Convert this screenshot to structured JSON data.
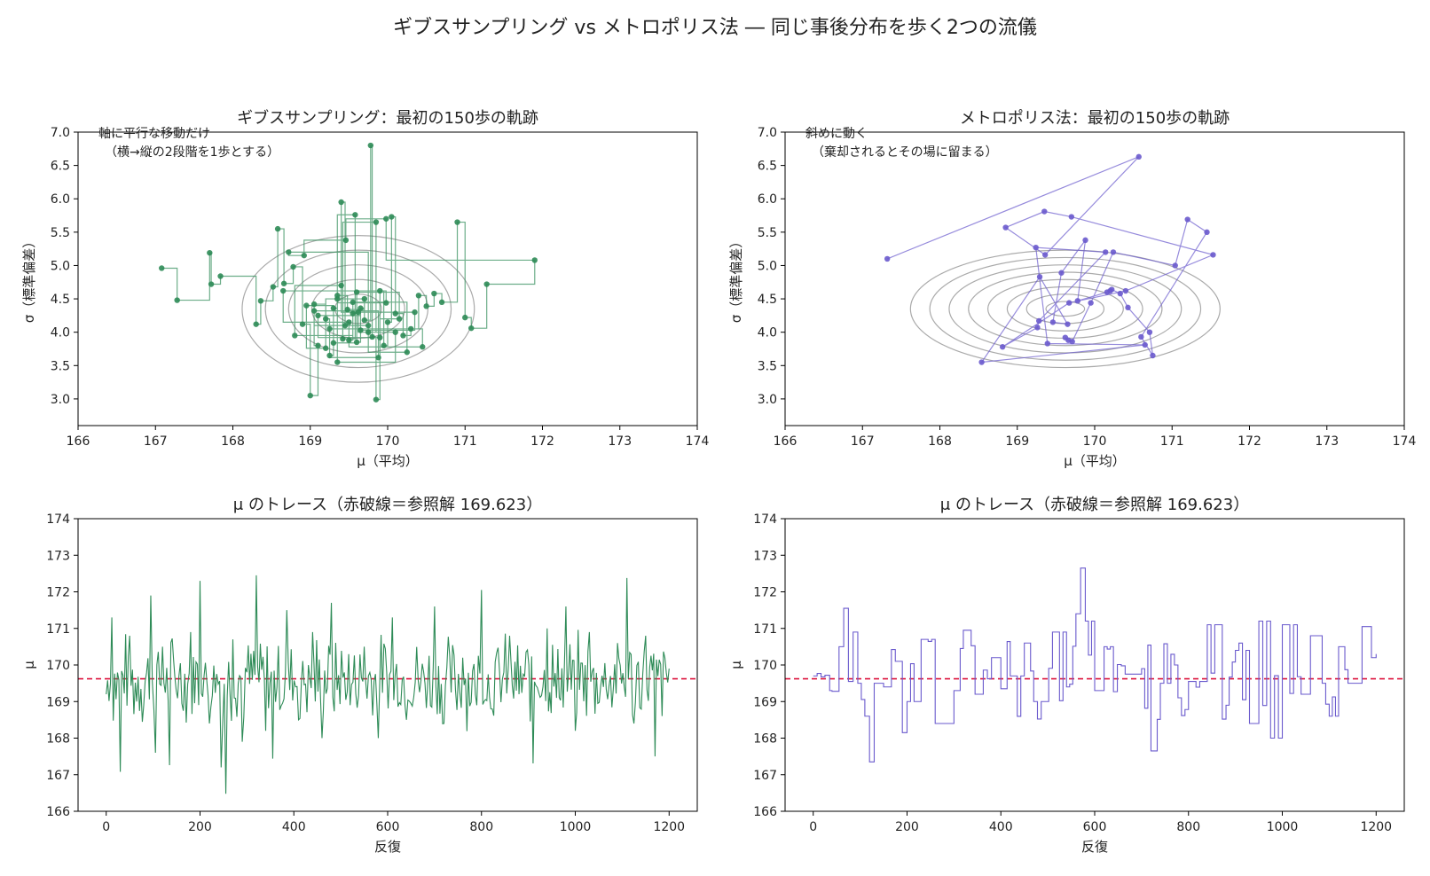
{
  "figure": {
    "suptitle": "ギブスサンプリング vs メトロポリス法 ― 同じ事後分布を歩く2つの流儀"
  },
  "colors": {
    "gibbs": "#2e8b57",
    "metropolis": "#6a5acd",
    "reference": "#dc143c",
    "contour": "#aaaaaa",
    "axis": "#000000"
  },
  "panels": {
    "gibbs_path": {
      "title": "ギブスサンプリング：最初の150歩の軌跡",
      "xlabel": "μ（平均）",
      "ylabel": "σ（標準偏差）",
      "annotation": [
        "軸に平行な移動だけ",
        "（横→縦の2段階を1歩とする）"
      ]
    },
    "mh_path": {
      "title": "メトロポリス法：最初の150歩の軌跡",
      "xlabel": "μ（平均）",
      "ylabel": "σ（標準偏差）",
      "annotation": [
        "斜めに動く",
        "（棄却されるとその場に留まる）"
      ]
    },
    "gibbs_trace": {
      "title": "μ のトレース（赤破線＝参照解 169.623）",
      "xlabel": "反復",
      "ylabel": "μ"
    },
    "mh_trace": {
      "title": "μ のトレース（赤破線＝参照解 169.623）",
      "xlabel": "反復",
      "ylabel": "μ"
    }
  },
  "chart_data": [
    {
      "id": "gibbs_path",
      "type": "line",
      "xlim": [
        166,
        174
      ],
      "ylim": [
        2.6,
        7.0
      ],
      "xticks": [
        166,
        167,
        168,
        169,
        170,
        171,
        172,
        173,
        174
      ],
      "yticks": [
        3.0,
        3.5,
        4.0,
        4.5,
        5.0,
        5.5,
        6.0,
        6.5,
        7.0
      ],
      "ytick_labels": [
        "3.0",
        "3.5",
        "4.0",
        "4.5",
        "5.0",
        "5.5",
        "6.0",
        "6.5",
        "7.0"
      ],
      "contours": {
        "center": [
          169.62,
          4.35
        ],
        "semi_axes_mu": [
          0.3,
          0.6,
          0.9,
          1.2,
          1.5
        ],
        "semi_axes_sigma": [
          0.22,
          0.44,
          0.66,
          0.88,
          1.1
        ]
      },
      "path_style": "step",
      "series": [
        {
          "x": [
            167.08,
            167.28,
            167.7,
            167.72,
            167.84,
            168.3,
            168.36,
            168.52,
            168.58,
            168.66,
            168.78,
            168.9,
            169.0,
            169.1,
            169.05,
            169.2,
            169.25,
            169.3,
            169.35,
            169.4,
            169.45,
            169.5,
            169.55,
            169.6,
            169.65,
            169.7,
            169.78,
            169.8,
            169.85,
            169.9,
            169.95,
            170.0,
            170.05,
            170.1,
            170.2,
            170.3,
            170.4,
            170.5,
            170.6,
            170.7,
            170.9,
            171.0,
            171.08,
            171.28,
            171.9,
            169.98,
            169.46,
            168.92,
            168.72,
            169.75,
            169.85,
            169.42,
            169.58,
            169.35,
            169.48,
            169.7,
            169.2,
            168.95,
            169.3,
            169.6,
            170.15,
            169.9,
            169.1,
            169.65,
            170.35,
            169.4,
            168.8,
            169.55,
            170.25,
            169.75,
            169.05,
            169.88,
            169.25,
            170.45,
            169.5,
            168.65,
            169.98,
            169.35,
            170.1,
            169.62
          ],
          "y": [
            4.96,
            4.48,
            5.19,
            4.72,
            4.84,
            4.12,
            4.47,
            4.68,
            5.55,
            4.73,
            4.98,
            4.12,
            3.05,
            3.8,
            4.42,
            4.2,
            3.65,
            4.36,
            4.5,
            5.95,
            4.1,
            3.88,
            4.28,
            3.85,
            4.36,
            4.18,
            6.8,
            3.93,
            2.99,
            4.62,
            3.8,
            4.15,
            5.73,
            4.28,
            3.95,
            4.05,
            4.55,
            4.39,
            4.58,
            4.45,
            5.65,
            4.22,
            4.06,
            4.72,
            5.08,
            5.7,
            5.38,
            5.15,
            5.2,
            4.0,
            5.65,
            3.9,
            5.76,
            4.55,
            4.34,
            4.5,
            3.76,
            4.4,
            3.84,
            4.6,
            4.2,
            3.92,
            4.25,
            4.03,
            4.3,
            4.7,
            3.95,
            4.45,
            3.7,
            4.1,
            4.32,
            3.62,
            4.05,
            3.78,
            4.15,
            4.62,
            4.44,
            3.55,
            4.0,
            4.3
          ]
        }
      ]
    },
    {
      "id": "mh_path",
      "type": "line",
      "xlim": [
        166,
        174
      ],
      "ylim": [
        2.6,
        7.0
      ],
      "xticks": [
        166,
        167,
        168,
        169,
        170,
        171,
        172,
        173,
        174
      ],
      "yticks": [
        3.0,
        3.5,
        4.0,
        4.5,
        5.0,
        5.5,
        6.0,
        6.5,
        7.0
      ],
      "ytick_labels": [
        "3.0",
        "3.5",
        "4.0",
        "4.5",
        "5.0",
        "5.5",
        "6.0",
        "6.5",
        "7.0"
      ],
      "contours": {
        "center": [
          169.62,
          4.35
        ],
        "semi_axes_mu": [
          0.25,
          0.5,
          0.75,
          1.0,
          1.25,
          1.5,
          1.75,
          2.0
        ],
        "semi_axes_sigma": [
          0.11,
          0.22,
          0.33,
          0.44,
          0.55,
          0.66,
          0.77,
          0.88
        ]
      },
      "path_style": "line",
      "series": [
        {
          "x": [
            167.32,
            170.57,
            169.36,
            168.85,
            169.35,
            169.7,
            171.53,
            170.4,
            169.67,
            168.81,
            169.26,
            169.28,
            170.14,
            169.24,
            169.39,
            170.65,
            168.54,
            169.29,
            169.65,
            169.46,
            169.57,
            169.88,
            169.78,
            170.16,
            170.2,
            170.22,
            170.33,
            170.43,
            170.71,
            170.75,
            170.6,
            171.45,
            171.2,
            171.04,
            170.24,
            169.95,
            169.71,
            169.66,
            169.62
          ],
          "y": [
            5.1,
            6.63,
            5.16,
            5.57,
            5.81,
            5.73,
            5.16,
            4.62,
            4.44,
            3.78,
            4.07,
            4.17,
            5.2,
            5.27,
            3.83,
            3.81,
            3.55,
            4.83,
            4.12,
            4.15,
            4.89,
            5.38,
            4.47,
            4.6,
            4.62,
            4.64,
            4.58,
            4.37,
            4.0,
            3.65,
            3.93,
            5.5,
            5.69,
            5.0,
            5.2,
            4.44,
            3.86,
            3.88,
            3.92
          ]
        }
      ]
    },
    {
      "id": "gibbs_trace",
      "type": "line",
      "xlim": [
        -60,
        1260
      ],
      "ylim": [
        166,
        174
      ],
      "xticks": [
        0,
        200,
        400,
        600,
        800,
        1000,
        1200
      ],
      "yticks": [
        166,
        167,
        168,
        169,
        170,
        171,
        172,
        173,
        174
      ],
      "reference_line": 169.623,
      "series": [
        {
          "x": [
            0,
            12,
            30,
            50,
            65,
            95,
            105,
            120,
            135,
            155,
            180,
            200,
            220,
            245,
            255,
            270,
            290,
            300,
            320,
            340,
            355,
            385,
            410,
            440,
            460,
            480,
            520,
            550,
            580,
            610,
            640,
            665,
            700,
            720,
            760,
            790,
            800,
            820,
            860,
            880,
            910,
            940,
            960,
            980,
            1000,
            1030,
            1060,
            1090,
            1110,
            1125,
            1150,
            1170,
            1200
          ],
          "y": [
            169.2,
            171.3,
            167.08,
            170.8,
            169.0,
            171.9,
            167.6,
            170.5,
            167.26,
            169.7,
            170.9,
            172.3,
            168.4,
            167.2,
            166.48,
            170.7,
            167.9,
            169.8,
            172.45,
            168.2,
            167.44,
            171.5,
            168.5,
            170.9,
            168.0,
            171.7,
            168.9,
            170.5,
            168.0,
            171.3,
            168.5,
            169.6,
            171.6,
            168.4,
            170.2,
            168.9,
            172.05,
            168.8,
            170.8,
            169.2,
            167.31,
            171.0,
            169.1,
            171.6,
            168.2,
            170.9,
            169.4,
            170.6,
            172.38,
            168.4,
            170.8,
            167.5,
            169.9
          ]
        }
      ]
    },
    {
      "id": "mh_trace",
      "type": "line",
      "xlim": [
        -60,
        1260
      ],
      "ylim": [
        166,
        174
      ],
      "xticks": [
        0,
        200,
        400,
        600,
        800,
        1000,
        1200
      ],
      "yticks": [
        166,
        167,
        168,
        169,
        170,
        171,
        172,
        173,
        174
      ],
      "reference_line": 169.623,
      "series": [
        {
          "x": [
            0,
            25,
            35,
            40,
            55,
            65,
            75,
            85,
            95,
            110,
            120,
            130,
            150,
            175,
            190,
            200,
            230,
            260,
            300,
            320,
            345,
            380,
            400,
            420,
            450,
            470,
            510,
            540,
            560,
            570,
            580,
            600,
            620,
            640,
            665,
            700,
            720,
            740,
            770,
            800,
            840,
            880,
            900,
            930,
            950,
            975,
            1000,
            1040,
            1060,
            1085,
            1100,
            1120,
            1140,
            1170,
            1190,
            1200
          ],
          "y": [
            169.7,
            169.72,
            169.3,
            169.28,
            170.5,
            171.55,
            169.55,
            170.9,
            169.5,
            168.6,
            167.35,
            169.5,
            169.4,
            170.1,
            168.15,
            169.0,
            170.7,
            168.4,
            169.3,
            170.95,
            169.2,
            170.2,
            169.35,
            169.7,
            170.6,
            169.0,
            170.9,
            169.4,
            171.4,
            172.65,
            171.2,
            169.3,
            170.5,
            169.27,
            169.75,
            169.9,
            167.65,
            169.5,
            170.0,
            169.55,
            171.1,
            168.9,
            170.4,
            168.4,
            171.2,
            168.0,
            171.1,
            169.2,
            170.8,
            169.5,
            168.6,
            170.5,
            169.5,
            171.05,
            170.2,
            170.3
          ]
        }
      ]
    }
  ]
}
